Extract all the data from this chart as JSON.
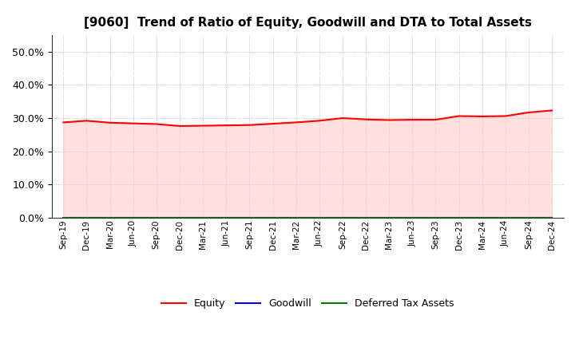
{
  "title": "[9060]  Trend of Ratio of Equity, Goodwill and DTA to Total Assets",
  "x_labels": [
    "Sep-19",
    "Dec-19",
    "Mar-20",
    "Jun-20",
    "Sep-20",
    "Dec-20",
    "Mar-21",
    "Jun-21",
    "Sep-21",
    "Dec-21",
    "Mar-22",
    "Jun-22",
    "Sep-22",
    "Dec-22",
    "Mar-23",
    "Jun-23",
    "Sep-23",
    "Dec-23",
    "Mar-24",
    "Jun-24",
    "Sep-24",
    "Dec-24"
  ],
  "equity": [
    0.287,
    0.292,
    0.286,
    0.284,
    0.282,
    0.276,
    0.277,
    0.278,
    0.279,
    0.283,
    0.287,
    0.292,
    0.3,
    0.296,
    0.294,
    0.295,
    0.295,
    0.306,
    0.305,
    0.306,
    0.317,
    0.323
  ],
  "goodwill": [
    0.0,
    0.0,
    0.0,
    0.0,
    0.0,
    0.0,
    0.0,
    0.0,
    0.0,
    0.0,
    0.0,
    0.0,
    0.0,
    0.0,
    0.0,
    0.0,
    0.0,
    0.0,
    0.0,
    0.0,
    0.0,
    0.0
  ],
  "dta": [
    0.0,
    0.0,
    0.0,
    0.0,
    0.0,
    0.0,
    0.0,
    0.0,
    0.0,
    0.0,
    0.0,
    0.0,
    0.0,
    0.0,
    0.0,
    0.0,
    0.0,
    0.0,
    0.0,
    0.0,
    0.0,
    0.0
  ],
  "equity_color": "#FF0000",
  "equity_fill_color": "#FFCCCC",
  "goodwill_color": "#0000FF",
  "dta_color": "#008000",
  "ylim": [
    0.0,
    0.55
  ],
  "yticks": [
    0.0,
    0.1,
    0.2,
    0.3,
    0.4,
    0.5
  ],
  "background_color": "#FFFFFF",
  "plot_bg_color": "#FFFFFF",
  "grid_color": "#999999",
  "title_fontsize": 11,
  "legend_labels": [
    "Equity",
    "Goodwill",
    "Deferred Tax Assets"
  ]
}
